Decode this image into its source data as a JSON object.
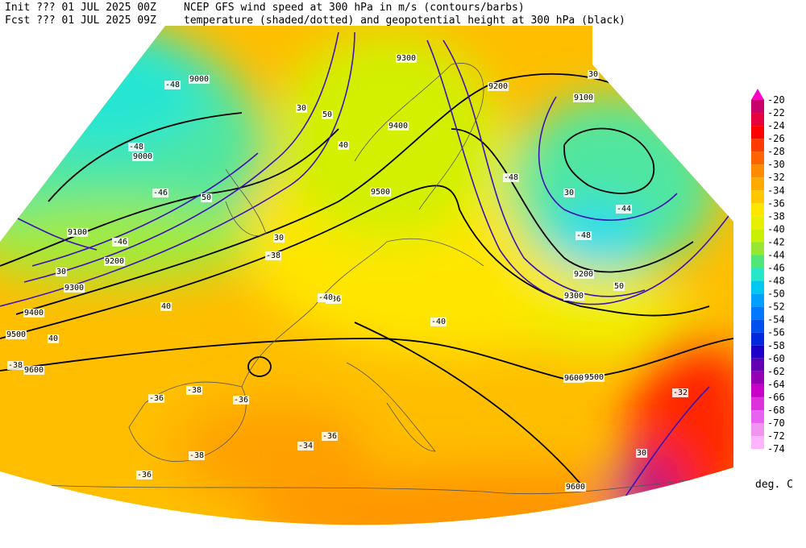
{
  "header": {
    "init_label": "Init  ??? 01 JUL 2025 00Z",
    "init_text": "NCEP GFS wind speed at 300 hPa in m/s (contours/barbs)",
    "fcst_label": "Fcst ??? 01 JUL 2025 09Z",
    "fcst_text": "temperature (shaded/dotted) and geopotential height at 300 hPa (black)"
  },
  "colorbar": {
    "unit": "deg. C",
    "levels": [
      {
        "label": "-20",
        "color": "#ff00c8"
      },
      {
        "label": "-22",
        "color": "#c8006e"
      },
      {
        "label": "-24",
        "color": "#e6003c"
      },
      {
        "label": "-26",
        "color": "#ff0000"
      },
      {
        "label": "-28",
        "color": "#ff3c00"
      },
      {
        "label": "-30",
        "color": "#ff6400"
      },
      {
        "label": "-32",
        "color": "#ff8c00"
      },
      {
        "label": "-34",
        "color": "#ffaa00"
      },
      {
        "label": "-36",
        "color": "#ffc800"
      },
      {
        "label": "-38",
        "color": "#ffe600"
      },
      {
        "label": "-40",
        "color": "#e6f000"
      },
      {
        "label": "-42",
        "color": "#c8f000"
      },
      {
        "label": "-44",
        "color": "#96e632"
      },
      {
        "label": "-46",
        "color": "#50e678"
      },
      {
        "label": "-48",
        "color": "#28e6c8"
      },
      {
        "label": "-50",
        "color": "#00c8f0"
      },
      {
        "label": "-52",
        "color": "#00a0ff"
      },
      {
        "label": "-54",
        "color": "#0078ff"
      },
      {
        "label": "-56",
        "color": "#0050f0"
      },
      {
        "label": "-58",
        "color": "#0028dc"
      },
      {
        "label": "-60",
        "color": "#1e00c8"
      },
      {
        "label": "-62",
        "color": "#6400b4"
      },
      {
        "label": "-64",
        "color": "#9600b4"
      },
      {
        "label": "-66",
        "color": "#c800c8"
      },
      {
        "label": "-68",
        "color": "#dc32dc"
      },
      {
        "label": "-70",
        "color": "#e664f0"
      },
      {
        "label": "-72",
        "color": "#f096f0"
      },
      {
        "label": "-74",
        "color": "#ffb4ff"
      }
    ]
  },
  "map_labels": [
    "9000",
    "9100",
    "9200",
    "9300",
    "9400",
    "9500",
    "9600",
    "9000",
    "9100",
    "9200",
    "9300",
    "9400",
    "9500",
    "9600",
    "9200",
    "9300",
    "9500",
    "9600",
    "30",
    "40",
    "50",
    "30",
    "40",
    "50",
    "30",
    "30",
    "30",
    "50",
    "40",
    "30",
    "-48",
    "-48",
    "-46",
    "-46",
    "-38",
    "-36",
    "-36",
    "-38",
    "-36",
    "-34",
    "-36",
    "-38",
    "-40",
    "-40",
    "-48",
    "-48",
    "-44",
    "-32",
    "-36",
    "-38"
  ]
}
